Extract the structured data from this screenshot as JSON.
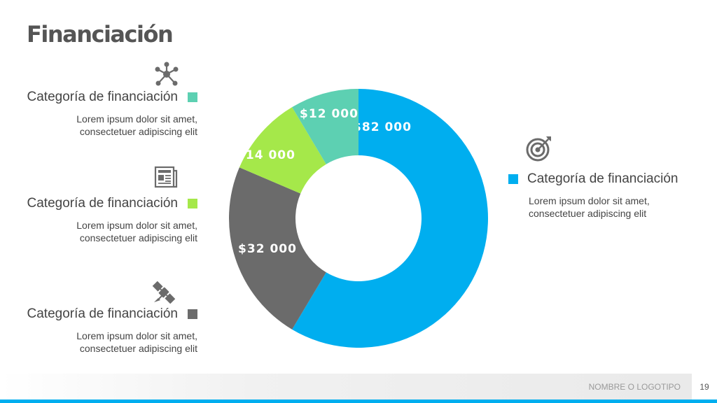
{
  "title": "Financiación",
  "categories_left": [
    {
      "heading": "Categoría de financiación",
      "desc_line1": "Lorem ipsum dolor sit amet,",
      "desc_line2": "consectetuer adipiscing elit",
      "color": "#5dd0b2",
      "icon": "network-icon"
    },
    {
      "heading": "Categoría de financiación",
      "desc_line1": "Lorem ipsum dolor sit amet,",
      "desc_line2": "consectetuer adipiscing elit",
      "color": "#a5e84a",
      "icon": "newspaper-icon"
    },
    {
      "heading": "Categoría de financiación",
      "desc_line1": "Lorem ipsum dolor sit amet,",
      "desc_line2": "consectetuer adipiscing elit",
      "color": "#6b6b6b",
      "icon": "satellite-icon"
    }
  ],
  "category_right": {
    "heading": "Categoría de financiación",
    "desc_line1": "Lorem ipsum dolor sit amet,",
    "desc_line2": "consectetuer adipiscing elit",
    "color": "#00aeef",
    "icon": "target-icon"
  },
  "chart_data": {
    "type": "pie",
    "donut": true,
    "series": [
      {
        "label": "$82 000",
        "value": 82000,
        "color": "#00aeef"
      },
      {
        "label": "$32 000",
        "value": 32000,
        "color": "#6b6b6b"
      },
      {
        "label": "$14 000",
        "value": 14000,
        "color": "#a5e84a"
      },
      {
        "label": "$12 000",
        "value": 12000,
        "color": "#5dd0b2"
      }
    ]
  },
  "footer": {
    "logo_text": "NOMBRE O LOGOTIPO",
    "page_number": "19"
  }
}
